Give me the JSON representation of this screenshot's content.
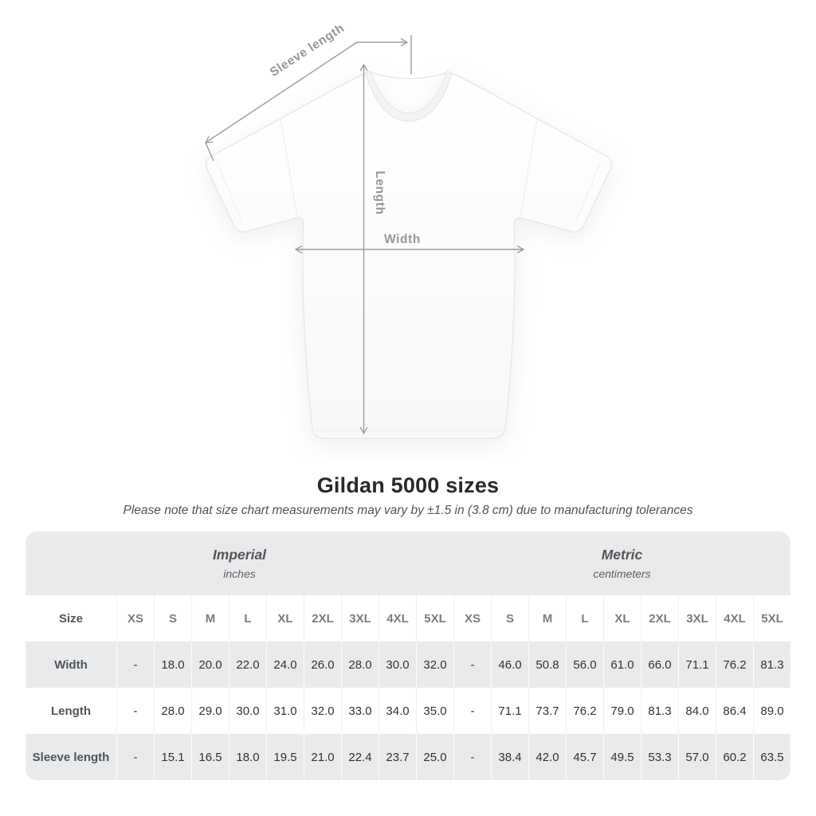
{
  "title": "Gildan 5000 sizes",
  "subtitle": "Please note that size chart measurements may vary by ±1.5 in (3.8 cm) due to manufacturing tolerances",
  "diagram": {
    "sleeve_label": "Sleeve length",
    "length_label": "Length",
    "width_label": "Width"
  },
  "table": {
    "size_header": "Size",
    "unit_groups": [
      {
        "name": "Imperial",
        "unit": "inches"
      },
      {
        "name": "Metric",
        "unit": "centimeters"
      }
    ],
    "sizes": [
      "XS",
      "S",
      "M",
      "L",
      "XL",
      "2XL",
      "3XL",
      "4XL",
      "5XL"
    ],
    "rows": [
      {
        "label": "Width",
        "imperial": [
          "-",
          "18.0",
          "20.0",
          "22.0",
          "24.0",
          "26.0",
          "28.0",
          "30.0",
          "32.0"
        ],
        "metric": [
          "-",
          "46.0",
          "50.8",
          "56.0",
          "61.0",
          "66.0",
          "71.1",
          "76.2",
          "81.3"
        ]
      },
      {
        "label": "Length",
        "imperial": [
          "-",
          "28.0",
          "29.0",
          "30.0",
          "31.0",
          "32.0",
          "33.0",
          "34.0",
          "35.0"
        ],
        "metric": [
          "-",
          "71.1",
          "73.7",
          "76.2",
          "79.0",
          "81.3",
          "84.0",
          "86.4",
          "89.0"
        ]
      },
      {
        "label": "Sleeve length",
        "imperial": [
          "-",
          "15.1",
          "16.5",
          "18.0",
          "19.5",
          "21.0",
          "22.4",
          "23.7",
          "25.0"
        ],
        "metric": [
          "-",
          "38.4",
          "42.0",
          "45.7",
          "49.5",
          "53.3",
          "57.0",
          "60.2",
          "63.5"
        ]
      }
    ]
  },
  "colors": {
    "line_gray": "#9a9da0",
    "label_gray": "#95979a",
    "title_dark": "#27292b",
    "subtitle_gray": "#505357",
    "table_gray": "#e9eaeb",
    "shirt_white": "#fdfdfd"
  }
}
